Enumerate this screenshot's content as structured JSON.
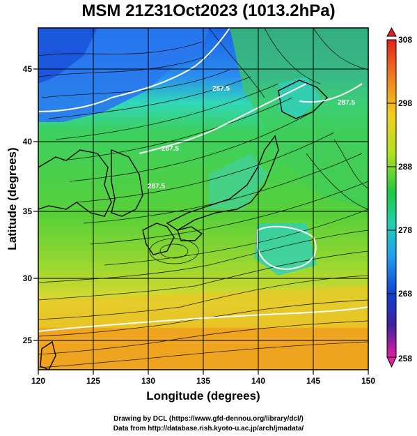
{
  "title": "MSM 21Z31Oct2023 (1013.2hPa)",
  "xlabel": "Longitude (degrees)",
  "ylabel": "Latitude  (degrees)",
  "x_ticks": [
    "120",
    "125",
    "130",
    "135",
    "140",
    "145",
    "150"
  ],
  "y_ticks": [
    "25",
    "30",
    "35",
    "40",
    "45"
  ],
  "colorbar_ticks": [
    "308",
    "298",
    "288",
    "278",
    "268",
    "258"
  ],
  "contour_labels": [
    "287.5",
    "287.5",
    "287.5",
    "287.5"
  ],
  "credits": {
    "line1": "Drawing by DCL (https://www.gfd-dennou.org/library/dcl/)",
    "line2": "Data from http://database.rish.kyoto-u.ac.jp/arch/jmadata/"
  },
  "map": {
    "lon_range": [
      120,
      150
    ],
    "lat_range": [
      22.5,
      47.5
    ],
    "variable": "temperature (K) with streamlines",
    "colorbar_range": [
      258,
      308
    ],
    "colormap": [
      "#e020a0",
      "#3030c0",
      "#1060e0",
      "#20c8e0",
      "#20c840",
      "#e8e020",
      "#f09020",
      "#e02020"
    ]
  }
}
